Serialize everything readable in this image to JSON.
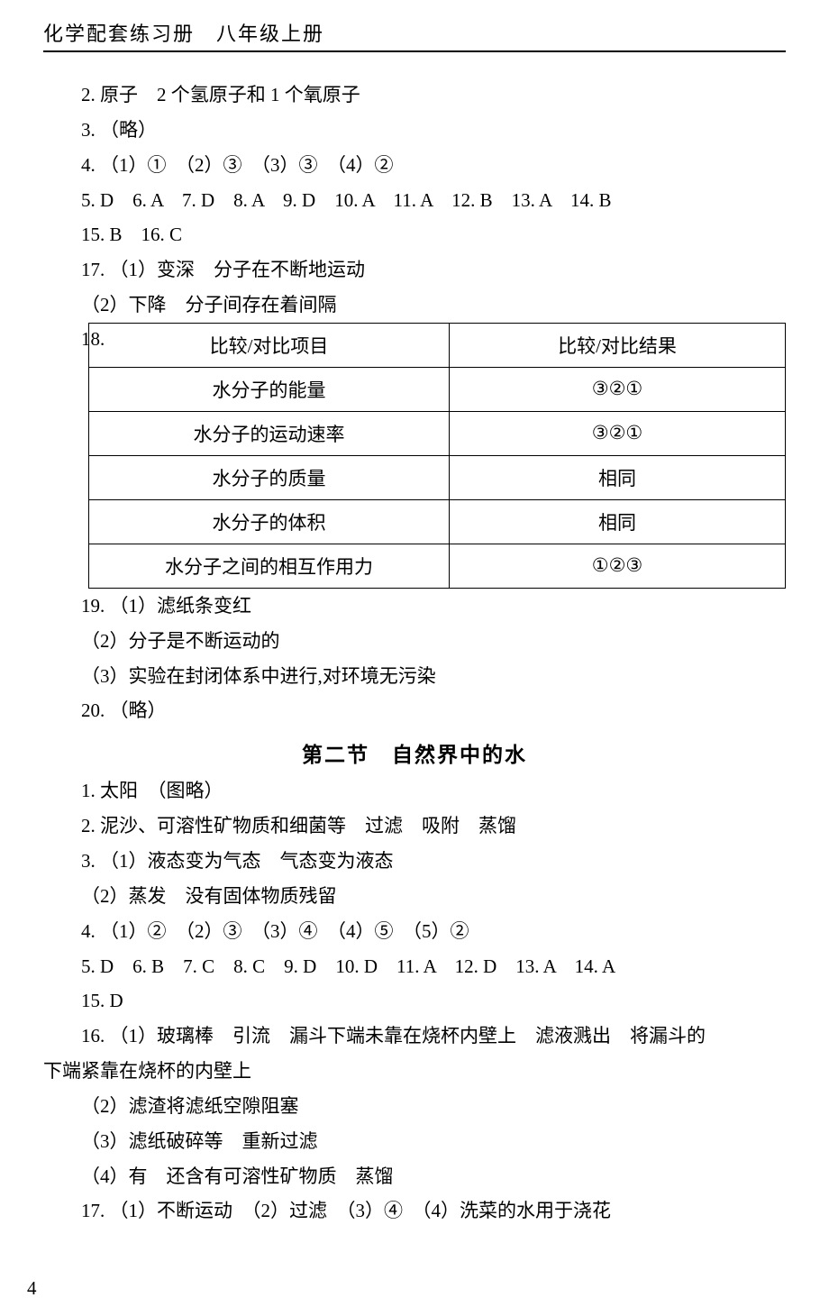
{
  "header": "化学配套练习册　八年级上册",
  "lines_top": [
    "2. 原子　2 个氢原子和 1 个氧原子",
    "3. （略）",
    "4. （1）①　（2）③　（3）③　（4）②",
    "5. D　6. A　7. D　8. A　9. D　10. A　11. A　12. B　13. A　14. B",
    "15. B　16. C",
    "17. （1）变深　分子在不断地运动",
    "（2）下降　分子间存在着间隔"
  ],
  "q18_label": "18.",
  "table": {
    "header": [
      "比较/对比项目",
      "比较/对比结果"
    ],
    "rows": [
      [
        "水分子的能量",
        "③②①"
      ],
      [
        "水分子的运动速率",
        "③②①"
      ],
      [
        "水分子的质量",
        "相同"
      ],
      [
        "水分子的体积",
        "相同"
      ],
      [
        "水分子之间的相互作用力",
        "①②③"
      ]
    ]
  },
  "lines_mid": [
    "19. （1）滤纸条变红",
    "（2）分子是不断运动的",
    "（3）实验在封闭体系中进行,对环境无污染",
    "20. （略）"
  ],
  "section_title": "第二节　自然界中的水",
  "lines_bottom": [
    "1. 太阳　（图略）",
    "2. 泥沙、可溶性矿物质和细菌等　过滤　吸附　蒸馏",
    "3. （1）液态变为气态　气态变为液态",
    "（2）蒸发　没有固体物质残留",
    "4. （1）②　（2）③　（3）④　（4）⑤　（5）②",
    "5. D　6. B　7. C　8. C　9. D　10. D　11. A　12. D　13. A　14. A",
    "15. D"
  ],
  "q16_line1": "16. （1）玻璃棒　引流　漏斗下端未靠在烧杯内壁上　滤液溅出　将漏斗的",
  "q16_line2": "下端紧靠在烧杯的内壁上",
  "lines_after16": [
    "（2）滤渣将滤纸空隙阻塞",
    "（3）滤纸破碎等　重新过滤",
    "（4）有　还含有可溶性矿物质　蒸馏",
    "17. （1）不断运动　（2）过滤　（3）④　（4）洗菜的水用于浇花"
  ],
  "page_number": "4"
}
